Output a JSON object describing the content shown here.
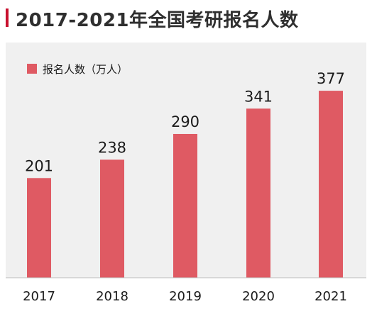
{
  "header": {
    "title": "2017-2021年全国考研报名人数"
  },
  "colors": {
    "accent": "#c8102e",
    "bar": "#df5a63",
    "panel": "#f0f0f0"
  },
  "chart_data": {
    "type": "bar",
    "title": "2017-2021年全国考研报名人数",
    "categories": [
      "2017",
      "2018",
      "2019",
      "2020",
      "2021"
    ],
    "series": [
      {
        "name": "报名人数（万人）",
        "values": [
          201,
          238,
          290,
          341,
          377
        ]
      }
    ],
    "ylim": [
      0,
      450
    ],
    "grid": false,
    "legend_position": "top-left",
    "data_labels": [
      "201",
      "238",
      "290",
      "341",
      "377"
    ]
  }
}
